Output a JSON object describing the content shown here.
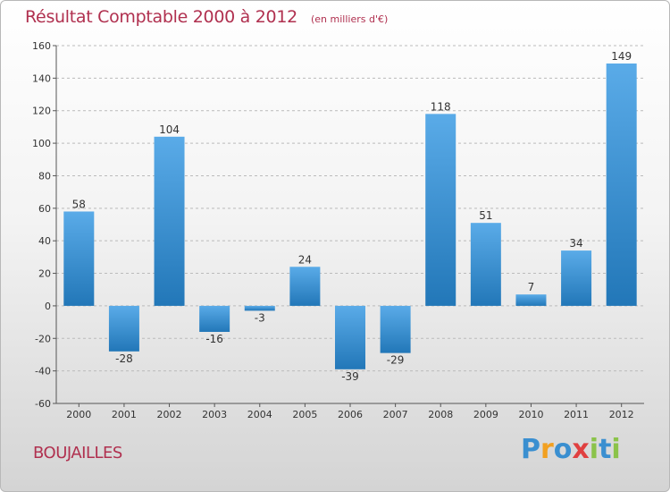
{
  "title": "Résultat Comptable 2000 à 2012",
  "subtitle": "(en milliers d'€)",
  "city": "BOUJAILLES",
  "logo": {
    "letters": [
      "P",
      "r",
      "o",
      "x",
      "i",
      "t",
      "i"
    ],
    "colors": [
      "#3a8fd0",
      "#f2a020",
      "#3a8fd0",
      "#e04040",
      "#8bc34a",
      "#3a8fd0",
      "#8bc34a"
    ]
  },
  "colors": {
    "title": "#b0304f",
    "bar_light": "#5aabe8",
    "bar_dark": "#2277b8",
    "grid": "#bbbbbb"
  },
  "chart_data": {
    "type": "bar",
    "title": "Résultat Comptable 2000 à 2012",
    "xlabel": "",
    "ylabel": "",
    "categories": [
      "2000",
      "2001",
      "2002",
      "2003",
      "2004",
      "2005",
      "2006",
      "2007",
      "2008",
      "2009",
      "2010",
      "2011",
      "2012"
    ],
    "values": [
      58,
      -28,
      104,
      -16,
      -3,
      24,
      -39,
      -29,
      118,
      51,
      7,
      34,
      149
    ],
    "ylim": [
      -60,
      160
    ],
    "yticks": [
      -60,
      -40,
      -20,
      0,
      20,
      40,
      60,
      80,
      100,
      120,
      140,
      160
    ],
    "grid": "horizontal-dashed"
  }
}
